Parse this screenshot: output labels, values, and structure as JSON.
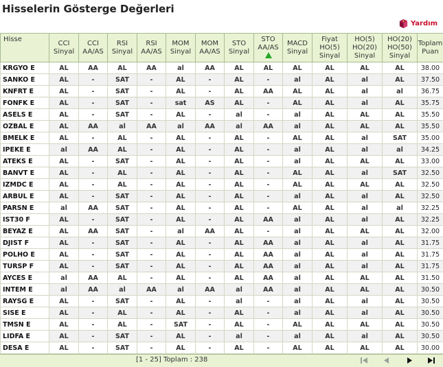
{
  "title": "Hisselerin Gösterge Değerleri",
  "help_label": "Yardım",
  "columns": [
    {
      "l1": "Hisse",
      "l2": "",
      "l3": ""
    },
    {
      "l1": "CCI",
      "l2": "Sinyal",
      "l3": ""
    },
    {
      "l1": "CCI",
      "l2": "AA/AS",
      "l3": ""
    },
    {
      "l1": "RSI",
      "l2": "Sinyal",
      "l3": ""
    },
    {
      "l1": "RSI",
      "l2": "AA/AS",
      "l3": ""
    },
    {
      "l1": "MOM",
      "l2": "Sinyal",
      "l3": ""
    },
    {
      "l1": "MOM",
      "l2": "AA/AS",
      "l3": ""
    },
    {
      "l1": "STO",
      "l2": "Sinyal",
      "l3": ""
    },
    {
      "l1": "STO",
      "l2": "AA/AS",
      "l3": "up-triangle"
    },
    {
      "l1": "MACD",
      "l2": "Sinyal",
      "l3": ""
    },
    {
      "l1": "Fiyat",
      "l2": "HO(5)",
      "l3": "Sinyal"
    },
    {
      "l1": "HO(5)",
      "l2": "HO(20)",
      "l3": "Sinyal"
    },
    {
      "l1": "HO(20)",
      "l2": "HO(50)",
      "l3": "Sinyal"
    },
    {
      "l1": "Toplam",
      "l2": "Puan",
      "l3": ""
    }
  ],
  "rows": [
    [
      "KRGYO E",
      "AL",
      "AA",
      "AL",
      "AA",
      "al",
      "AA",
      "AL",
      "AL",
      "AL",
      "AL",
      "AL",
      "AL",
      "38.00"
    ],
    [
      "SANKO E",
      "AL",
      "-",
      "SAT",
      "-",
      "AL",
      "-",
      "AL",
      "-",
      "al",
      "AL",
      "al",
      "AL",
      "37.50"
    ],
    [
      "KNFRT E",
      "AL",
      "-",
      "SAT",
      "-",
      "AL",
      "-",
      "AL",
      "AA",
      "AL",
      "AL",
      "al",
      "al",
      "36.75"
    ],
    [
      "FONFK E",
      "AL",
      "-",
      "SAT",
      "-",
      "sat",
      "AS",
      "AL",
      "-",
      "AL",
      "AL",
      "al",
      "AL",
      "35.75"
    ],
    [
      "ASELS E",
      "AL",
      "-",
      "SAT",
      "-",
      "AL",
      "-",
      "al",
      "-",
      "al",
      "AL",
      "AL",
      "AL",
      "35.50"
    ],
    [
      "OZBAL E",
      "AL",
      "AA",
      "al",
      "AA",
      "al",
      "AA",
      "al",
      "AA",
      "al",
      "AL",
      "AL",
      "AL",
      "35.50"
    ],
    [
      "BMELK E",
      "AL",
      "-",
      "AL",
      "-",
      "AL",
      "-",
      "AL",
      "-",
      "AL",
      "AL",
      "al",
      "SAT",
      "35.00"
    ],
    [
      "IPEKE E",
      "al",
      "AA",
      "AL",
      "-",
      "AL",
      "-",
      "AL",
      "-",
      "al",
      "AL",
      "al",
      "al",
      "34.25"
    ],
    [
      "ATEKS E",
      "AL",
      "-",
      "SAT",
      "-",
      "AL",
      "-",
      "AL",
      "-",
      "al",
      "AL",
      "AL",
      "AL",
      "33.00"
    ],
    [
      "BANVT E",
      "AL",
      "-",
      "AL",
      "-",
      "AL",
      "-",
      "AL",
      "-",
      "AL",
      "AL",
      "al",
      "SAT",
      "32.50"
    ],
    [
      "IZMDC E",
      "AL",
      "-",
      "AL",
      "-",
      "AL",
      "-",
      "AL",
      "-",
      "AL",
      "AL",
      "AL",
      "AL",
      "32.50"
    ],
    [
      "ARBUL E",
      "AL",
      "-",
      "SAT",
      "-",
      "AL",
      "-",
      "AL",
      "-",
      "al",
      "AL",
      "al",
      "AL",
      "32.50"
    ],
    [
      "PARSN E",
      "al",
      "AA",
      "SAT",
      "-",
      "AL",
      "-",
      "AL",
      "-",
      "AL",
      "AL",
      "al",
      "al",
      "32.25"
    ],
    [
      "IST30 F",
      "AL",
      "-",
      "SAT",
      "-",
      "AL",
      "-",
      "AL",
      "AA",
      "al",
      "AL",
      "al",
      "AL",
      "32.25"
    ],
    [
      "BEYAZ E",
      "AL",
      "AA",
      "SAT",
      "-",
      "al",
      "AA",
      "AL",
      "-",
      "al",
      "AL",
      "AL",
      "AL",
      "32.00"
    ],
    [
      "DJIST F",
      "AL",
      "-",
      "SAT",
      "-",
      "AL",
      "-",
      "AL",
      "AA",
      "al",
      "AL",
      "al",
      "AL",
      "31.75"
    ],
    [
      "POLHO E",
      "AL",
      "-",
      "SAT",
      "-",
      "AL",
      "-",
      "AL",
      "AA",
      "al",
      "AL",
      "al",
      "AL",
      "31.75"
    ],
    [
      "TURSP F",
      "AL",
      "-",
      "SAT",
      "-",
      "AL",
      "-",
      "AL",
      "AA",
      "al",
      "AL",
      "al",
      "AL",
      "31.75"
    ],
    [
      "AYCES E",
      "al",
      "AA",
      "AL",
      "-",
      "AL",
      "-",
      "AL",
      "AA",
      "al",
      "AL",
      "AL",
      "AL",
      "31.50"
    ],
    [
      "INTEM E",
      "al",
      "AA",
      "al",
      "AA",
      "al",
      "AA",
      "al",
      "AA",
      "al",
      "AL",
      "AL",
      "AL",
      "30.50"
    ],
    [
      "RAYSG E",
      "AL",
      "-",
      "SAT",
      "-",
      "AL",
      "-",
      "al",
      "-",
      "al",
      "AL",
      "al",
      "AL",
      "30.50"
    ],
    [
      "SISE E",
      "AL",
      "-",
      "AL",
      "-",
      "AL",
      "-",
      "AL",
      "-",
      "al",
      "AL",
      "al",
      "AL",
      "30.50"
    ],
    [
      "TMSN E",
      "AL",
      "-",
      "AL",
      "-",
      "SAT",
      "-",
      "AL",
      "-",
      "AL",
      "AL",
      "AL",
      "AL",
      "30.50"
    ],
    [
      "LIDFA E",
      "AL",
      "-",
      "SAT",
      "-",
      "AL",
      "-",
      "al",
      "-",
      "al",
      "AL",
      "al",
      "AL",
      "30.50"
    ],
    [
      "DESA E",
      "AL",
      "-",
      "SAT",
      "-",
      "AL",
      "-",
      "AL",
      "-",
      "AL",
      "AL",
      "AL",
      "AL",
      "30.00"
    ]
  ],
  "footer": {
    "paging_text": "[1 - 25] Toplam : 238"
  },
  "colors": {
    "buy": "#1c8a1c",
    "sell": "#d40000",
    "header_bg": "#e9f3d4",
    "help": "#c8102e"
  }
}
